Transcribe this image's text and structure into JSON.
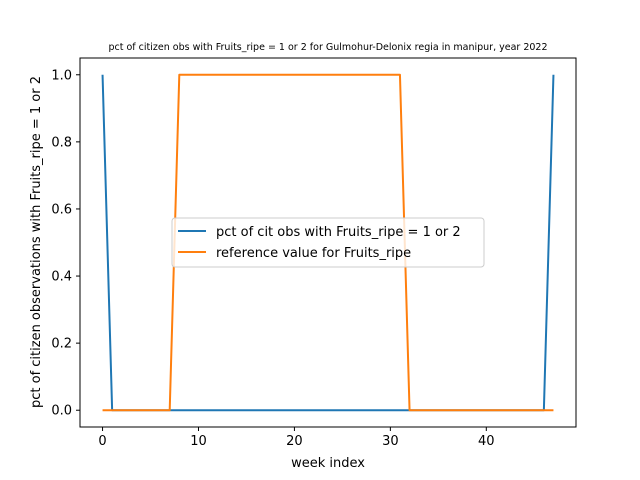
{
  "chart_data": {
    "type": "line",
    "title": "pct of citizen obs with Fruits_ripe = 1 or 2 for Gulmohur-Delonix regia in manipur, year 2022",
    "xlabel": "week index",
    "ylabel": "pct of citizen observations with Fruits_ripe = 1 or 2",
    "xlim": [
      -2.35,
      49.35
    ],
    "ylim": [
      -0.05,
      1.05
    ],
    "x_ticks": [
      0,
      10,
      20,
      30,
      40
    ],
    "y_ticks": [
      0.0,
      0.2,
      0.4,
      0.6,
      0.8,
      1.0
    ],
    "x_tick_labels": [
      "0",
      "10",
      "20",
      "30",
      "40"
    ],
    "y_tick_labels": [
      "0.0",
      "0.2",
      "0.4",
      "0.6",
      "0.8",
      "1.0"
    ],
    "grid": false,
    "legend_position": "center",
    "series": [
      {
        "name": "pct of cit obs with Fruits_ripe = 1 or 2",
        "color": "#1f77b4",
        "x": [
          0,
          1,
          46,
          47
        ],
        "y": [
          1,
          0,
          0,
          1
        ]
      },
      {
        "name": "reference value for Fruits_ripe",
        "color": "#ff7f0e",
        "x": [
          0,
          7,
          8,
          31,
          32,
          47
        ],
        "y": [
          0,
          0,
          1,
          1,
          0,
          0
        ]
      }
    ]
  }
}
